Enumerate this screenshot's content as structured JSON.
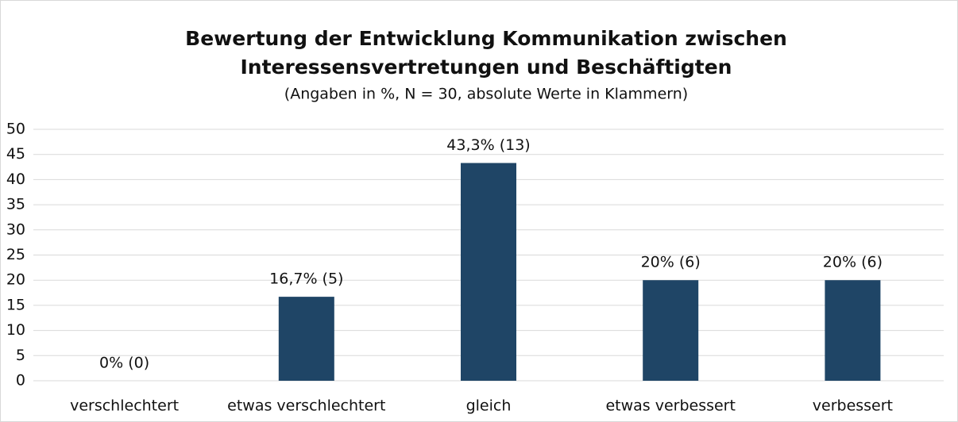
{
  "chart_data": {
    "type": "bar",
    "title": [
      "Bewertung der Entwicklung Kommunikation zwischen",
      "Interessensvertretungen und Beschäftigten"
    ],
    "subtitle": "(Angaben in %, N = 30, absolute Werte in Klammern)",
    "categories": [
      "verschlechtert",
      "etwas verschlechtert",
      "gleich",
      "etwas verbessert",
      "verbessert"
    ],
    "values": [
      0,
      16.7,
      43.3,
      20,
      20
    ],
    "value_labels": [
      "0% (0)",
      "16,7% (5)",
      "43,3% (13)",
      "20% (6)",
      "20% (6)"
    ],
    "color": "#1f4566",
    "ylim": [
      0,
      50
    ],
    "yticks": [
      0,
      5,
      10,
      15,
      20,
      25,
      30,
      35,
      40,
      45,
      50
    ],
    "grid": true
  }
}
